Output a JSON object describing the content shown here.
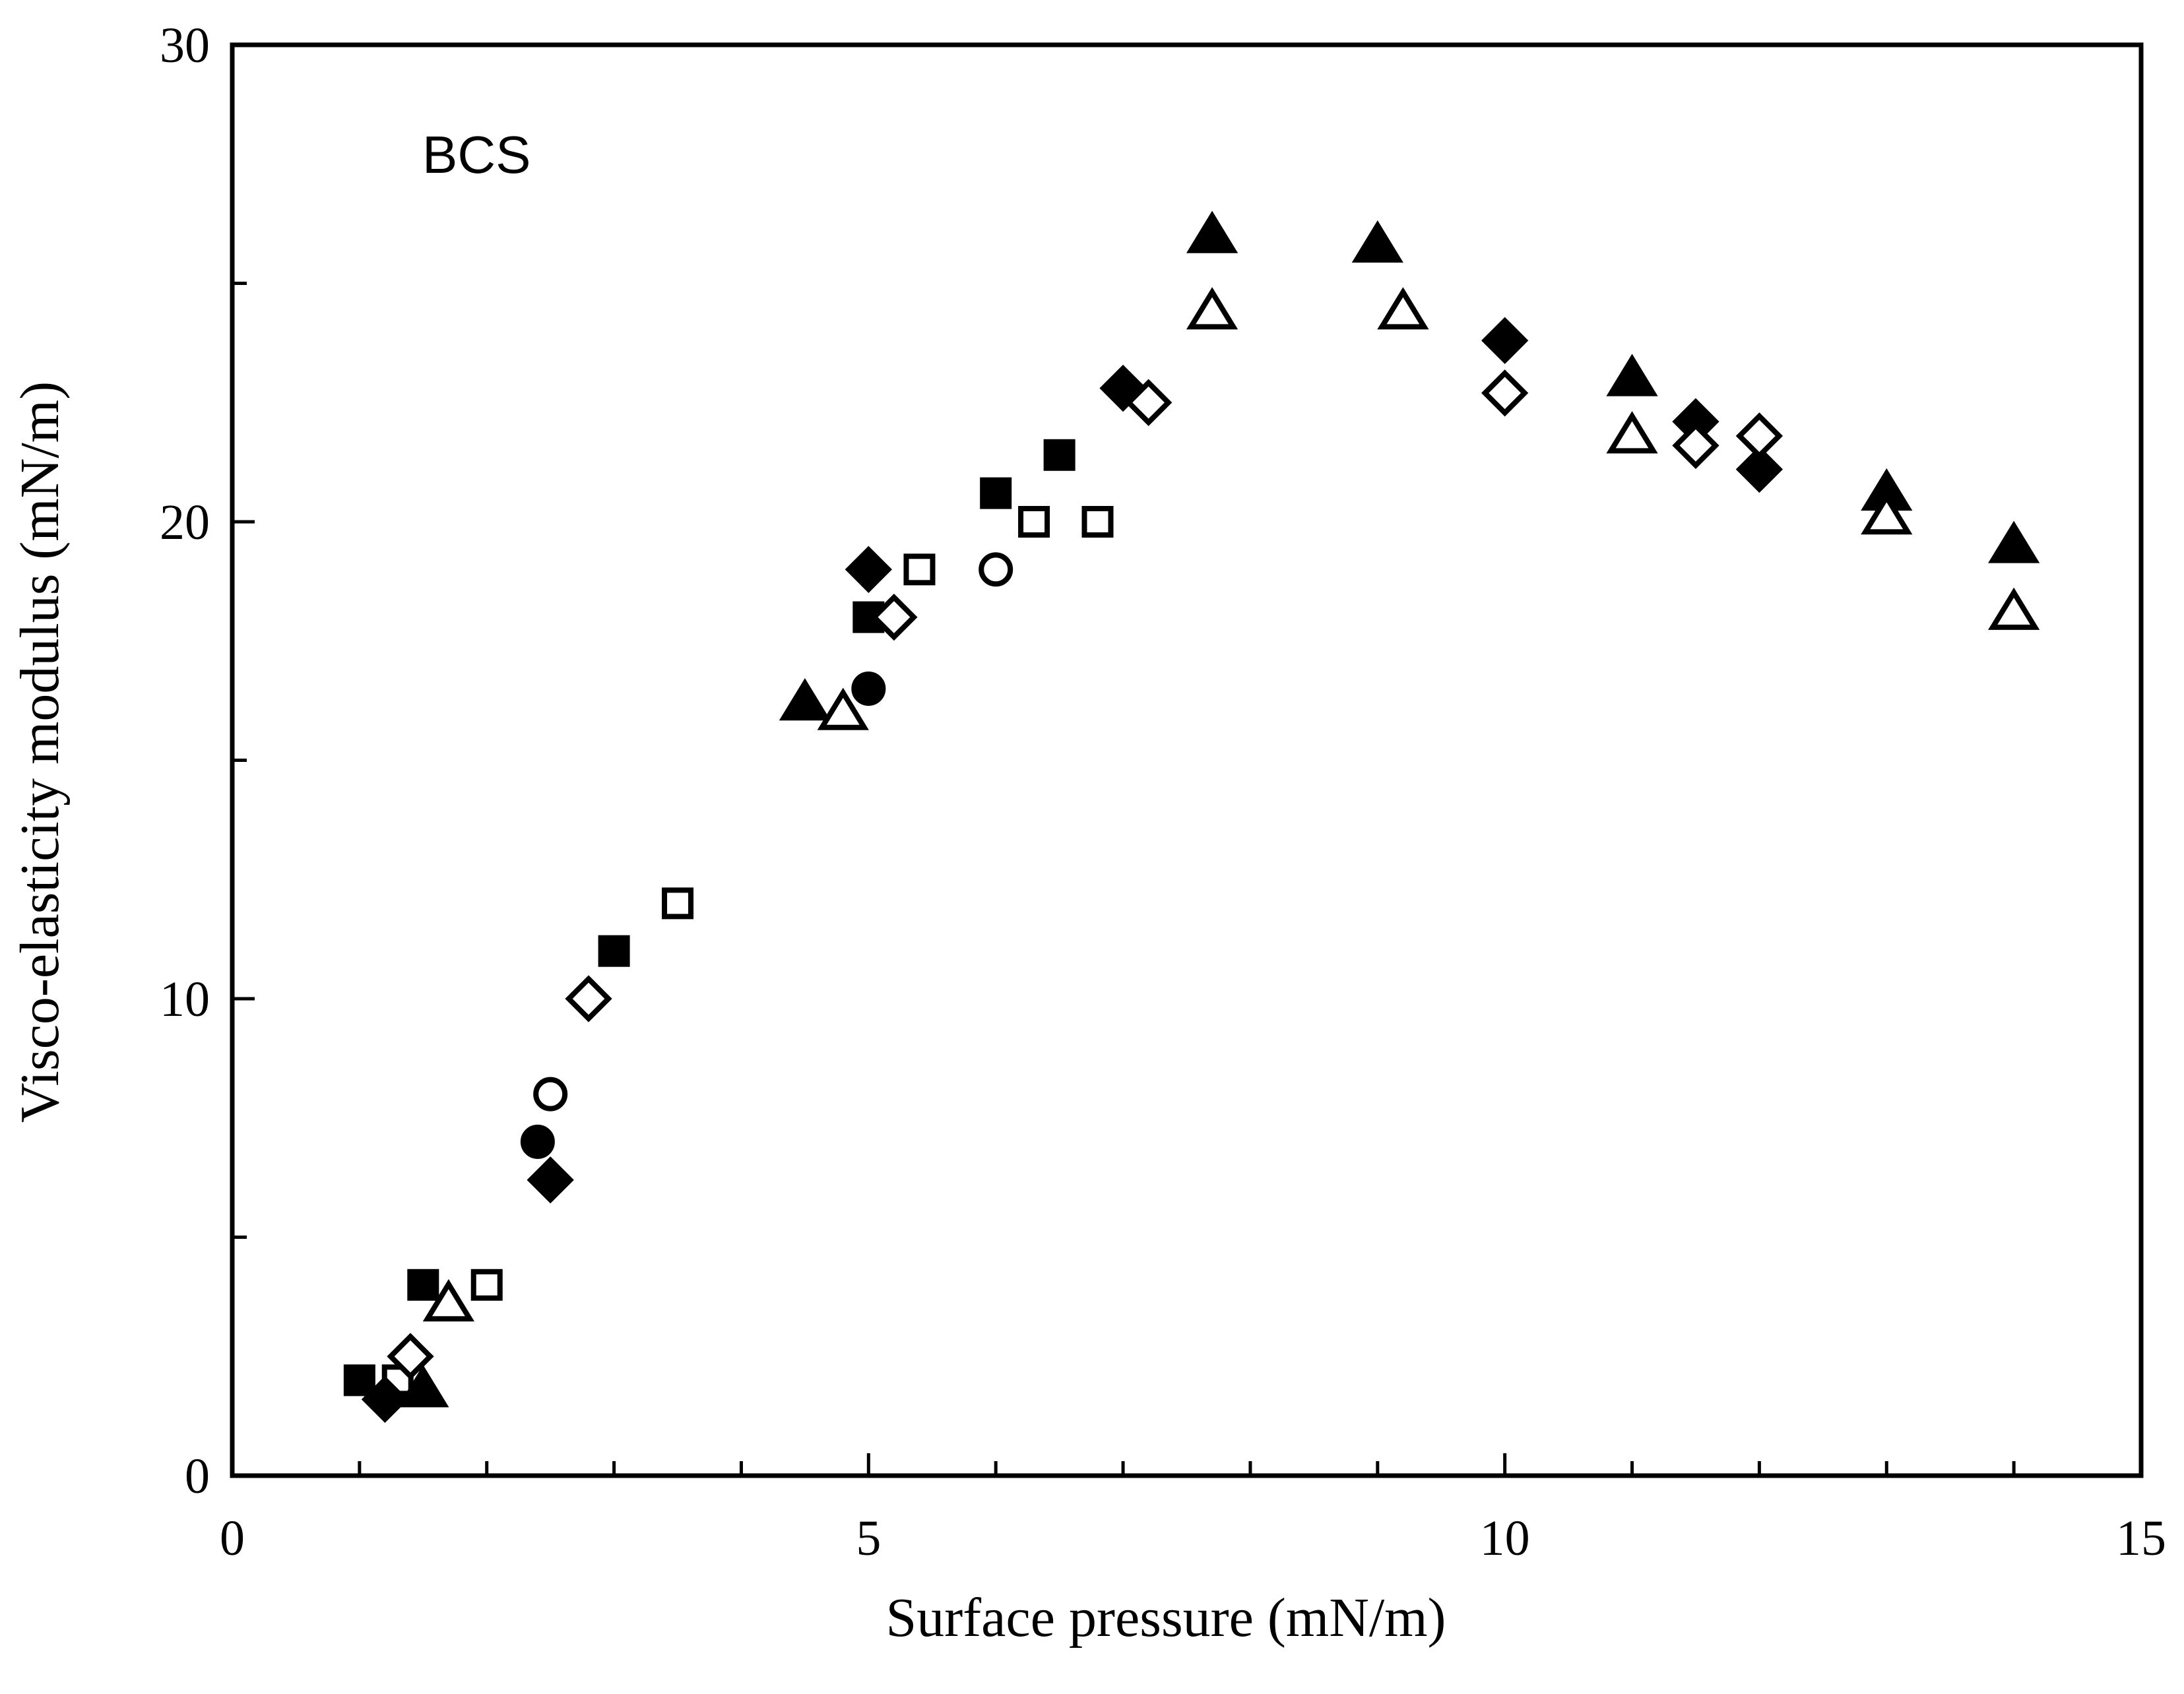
{
  "chart_data": {
    "type": "scatter",
    "title": "",
    "annotation": "BCS",
    "xlabel": "Surface pressure (mN/m)",
    "ylabel": "Visco-elasticity modulus (mN/m)",
    "xlim": [
      0,
      15
    ],
    "ylim": [
      0,
      30
    ],
    "x_major_ticks": [
      0,
      5,
      10,
      15
    ],
    "x_minor_ticks": [
      1,
      2,
      3,
      4,
      6,
      7,
      8,
      9,
      11,
      12,
      13,
      14
    ],
    "y_major_ticks": [
      0,
      10,
      20,
      30
    ],
    "y_minor_ticks": [
      5,
      15,
      25
    ],
    "x_tick_labels": [
      "0",
      "5",
      "10",
      "15"
    ],
    "y_tick_labels": [
      "0",
      "10",
      "20",
      "30"
    ],
    "grid": false,
    "legend": "none",
    "series": [
      {
        "name": "filled-square",
        "marker": "square",
        "filled": true,
        "points": [
          [
            1.0,
            2.0
          ],
          [
            1.5,
            4.0
          ],
          [
            3.0,
            11.0
          ],
          [
            5.0,
            18.0
          ],
          [
            6.0,
            20.6
          ],
          [
            6.5,
            21.4
          ]
        ]
      },
      {
        "name": "open-square",
        "marker": "square",
        "filled": false,
        "points": [
          [
            1.3,
            2.0
          ],
          [
            2.0,
            4.0
          ],
          [
            3.5,
            12.0
          ],
          [
            5.4,
            19.0
          ],
          [
            6.3,
            20.0
          ],
          [
            6.8,
            20.0
          ]
        ]
      },
      {
        "name": "filled-circle",
        "marker": "circle",
        "filled": true,
        "points": [
          [
            2.4,
            7.0
          ],
          [
            5.0,
            16.5
          ]
        ]
      },
      {
        "name": "open-circle",
        "marker": "circle",
        "filled": false,
        "points": [
          [
            2.5,
            8.0
          ],
          [
            6.0,
            19.0
          ]
        ]
      },
      {
        "name": "filled-diamond",
        "marker": "diamond",
        "filled": true,
        "points": [
          [
            1.2,
            1.6
          ],
          [
            2.5,
            6.2
          ],
          [
            5.0,
            19.0
          ],
          [
            7.0,
            22.8
          ],
          [
            10.0,
            23.8
          ],
          [
            11.5,
            22.1
          ],
          [
            12.0,
            21.1
          ]
        ]
      },
      {
        "name": "open-diamond",
        "marker": "diamond",
        "filled": false,
        "points": [
          [
            1.4,
            2.5
          ],
          [
            2.8,
            10.0
          ],
          [
            5.2,
            18.0
          ],
          [
            7.2,
            22.5
          ],
          [
            10.0,
            22.7
          ],
          [
            11.5,
            21.6
          ],
          [
            12.0,
            21.8
          ]
        ]
      },
      {
        "name": "filled-triangle",
        "marker": "triangle",
        "filled": true,
        "points": [
          [
            1.5,
            1.8
          ],
          [
            4.5,
            16.2
          ],
          [
            7.7,
            26.0
          ],
          [
            9.0,
            25.8
          ],
          [
            11.0,
            23.0
          ],
          [
            13.0,
            20.6
          ],
          [
            14.0,
            19.5
          ]
        ]
      },
      {
        "name": "open-triangle",
        "marker": "triangle",
        "filled": false,
        "points": [
          [
            1.7,
            3.6
          ],
          [
            4.8,
            16.0
          ],
          [
            7.7,
            24.4
          ],
          [
            9.2,
            24.4
          ],
          [
            11.0,
            21.8
          ],
          [
            13.0,
            20.1
          ],
          [
            14.0,
            18.1
          ]
        ]
      }
    ]
  }
}
